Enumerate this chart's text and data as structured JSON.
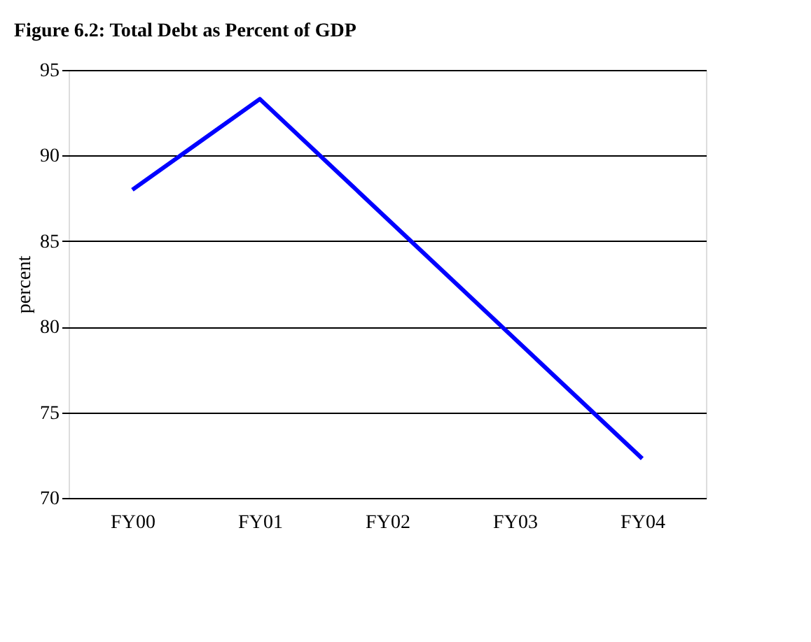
{
  "chart_data": {
    "type": "line",
    "title": "Figure 6.2: Total Debt as Percent of GDP",
    "ylabel": "percent",
    "categories": [
      "FY00",
      "FY01",
      "FY02",
      "FY03",
      "FY04"
    ],
    "series": [
      {
        "color": "#0000ff",
        "values": [
          88.0,
          93.3,
          86.3,
          79.3,
          72.3
        ]
      }
    ],
    "ylim": [
      70,
      95
    ],
    "yticks": [
      70,
      75,
      80,
      85,
      90,
      95
    ],
    "grid": "y",
    "legend": false,
    "marker": "none",
    "line_style": "solid"
  }
}
